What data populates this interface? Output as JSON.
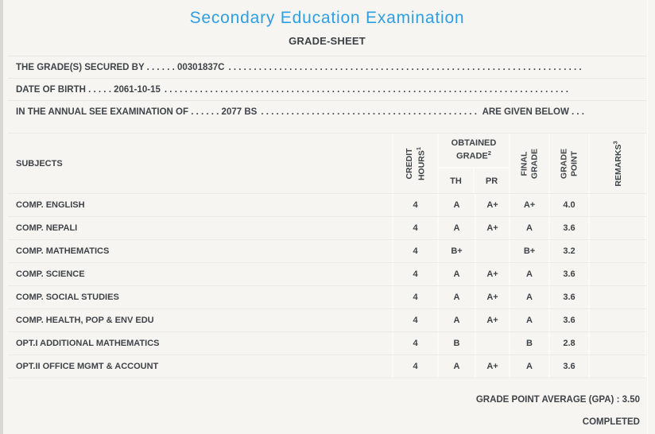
{
  "page": {
    "title": "Secondary Education Examination",
    "subtitle": "GRADE-SHEET"
  },
  "info": {
    "leader_dots": ". . . . . . . . . . . . . . . . . . . . . . . . . . . . . . . . . . . . . . . . . . . . . . . . . . . . . . . . . . . . . . . . . . . . . . . . . . . . . . . .",
    "lines": [
      {
        "text": "THE GRADE(S) SECURED BY . . . . . . 00301837C",
        "suffix": ""
      },
      {
        "text": "DATE OF BIRTH . . . . . 2061-10-15",
        "suffix": ""
      },
      {
        "text": "IN THE ANNUAL SEE EXAMINATION OF . . . . . . 2077 BS",
        "suffix": "ARE GIVEN BELOW . . ."
      }
    ]
  },
  "table": {
    "header": {
      "subjects": "SUBJECTS",
      "credit_hours": "CREDIT HOURS",
      "credit_hours_sup": "1",
      "obtained_grade": "OBTAINED GRADE",
      "obtained_grade_sup": "2",
      "th": "TH",
      "pr": "PR",
      "final_grade": "FINAL GRADE",
      "grade_point": "GRADE POINT",
      "remarks": "REMARKS",
      "remarks_sup": "3"
    },
    "rows": [
      {
        "subject": "COMP. ENGLISH",
        "credit": "4",
        "th": "A",
        "pr": "A+",
        "final": "A+",
        "point": "4.0",
        "remarks": ""
      },
      {
        "subject": "COMP. NEPALI",
        "credit": "4",
        "th": "A",
        "pr": "A+",
        "final": "A",
        "point": "3.6",
        "remarks": ""
      },
      {
        "subject": "COMP. MATHEMATICS",
        "credit": "4",
        "th": "B+",
        "pr": "",
        "final": "B+",
        "point": "3.2",
        "remarks": ""
      },
      {
        "subject": "COMP. SCIENCE",
        "credit": "4",
        "th": "A",
        "pr": "A+",
        "final": "A",
        "point": "3.6",
        "remarks": ""
      },
      {
        "subject": "COMP. SOCIAL STUDIES",
        "credit": "4",
        "th": "A",
        "pr": "A+",
        "final": "A",
        "point": "3.6",
        "remarks": ""
      },
      {
        "subject": "COMP. HEALTH, POP & ENV EDU",
        "credit": "4",
        "th": "A",
        "pr": "A+",
        "final": "A",
        "point": "3.6",
        "remarks": ""
      },
      {
        "subject": "OPT.I ADDITIONAL MATHEMATICS",
        "credit": "4",
        "th": "B",
        "pr": "",
        "final": "B",
        "point": "2.8",
        "remarks": ""
      },
      {
        "subject": "OPT.II OFFICE MGMT & ACCOUNT",
        "credit": "4",
        "th": "A",
        "pr": "A+",
        "final": "A",
        "point": "3.6",
        "remarks": ""
      }
    ]
  },
  "footer": {
    "gpa_line": "GRADE POINT AVERAGE (GPA) : 3.50",
    "status": "COMPLETED"
  },
  "colors": {
    "accent_blue": "#2d9fe2",
    "text": "#3f4348",
    "background": "#f6f5f2"
  }
}
